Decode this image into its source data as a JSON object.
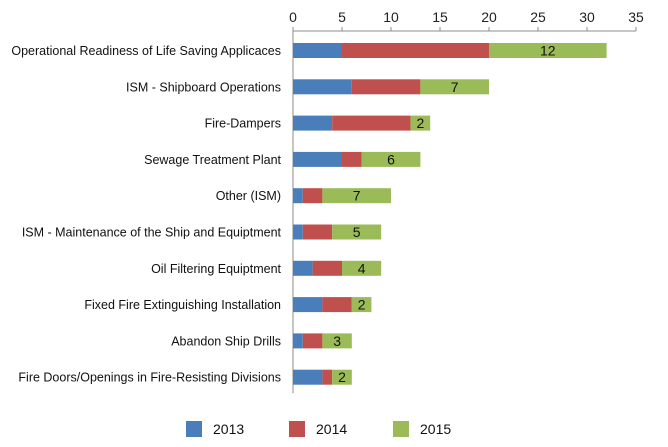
{
  "chart_data": {
    "type": "bar",
    "orientation": "horizontal",
    "stacked": true,
    "title": "",
    "xlabel": "",
    "ylabel": "",
    "xlim": [
      0,
      35
    ],
    "x_ticks": [
      0,
      5,
      10,
      15,
      20,
      25,
      30,
      35
    ],
    "x_axis_position": "top",
    "grid": false,
    "legend_position": "bottom",
    "categories": [
      "Operational Readiness of Life Saving Applicaces",
      "ISM - Shipboard Operations",
      "Fire-Dampers",
      "Sewage Treatment Plant",
      "Other (ISM)",
      "ISM - Maintenance of the Ship and Equiptment",
      "Oil Filtering Equiptment",
      "Fixed Fire Extinguishing Installation",
      "Abandon Ship Drills",
      "Fire Doors/Openings in Fire-Resisting Divisions"
    ],
    "series": [
      {
        "name": "2013",
        "color": "#4a7ebb",
        "values": [
          5,
          6,
          4,
          5,
          1,
          1,
          2,
          3,
          1,
          3
        ]
      },
      {
        "name": "2014",
        "color": "#c0504d",
        "values": [
          15,
          7,
          8,
          2,
          2,
          3,
          3,
          3,
          2,
          1
        ]
      },
      {
        "name": "2015",
        "color": "#9bbb59",
        "values": [
          12,
          7,
          2,
          6,
          7,
          5,
          4,
          2,
          3,
          2
        ]
      }
    ],
    "data_labels_series": "2015"
  }
}
